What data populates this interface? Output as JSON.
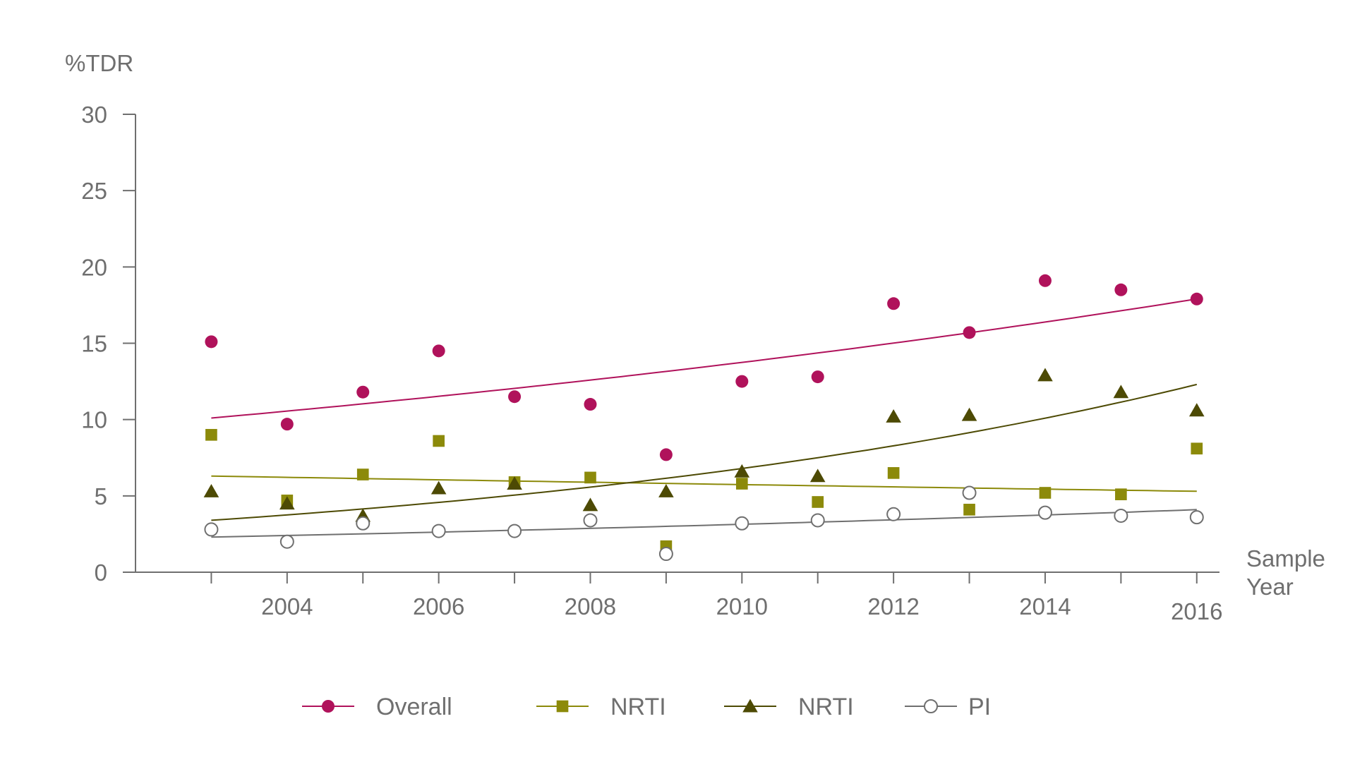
{
  "chart_data": {
    "type": "scatter",
    "ylabel": "%TDR",
    "xlabel_lines": [
      "Sample",
      "Year"
    ],
    "xlim": [
      2002,
      2016.3
    ],
    "ylim": [
      0,
      30
    ],
    "y_ticks": [
      0,
      5,
      10,
      15,
      20,
      25,
      30
    ],
    "x_ticks": [
      2004,
      2006,
      2008,
      2010,
      2012,
      2014,
      2016
    ],
    "x_tick_labels": [
      "2004",
      "2006",
      "2008",
      "2010",
      "2012",
      "2014",
      "2016"
    ],
    "grid": false,
    "legend_position": "bottom",
    "series": [
      {
        "name": "Overall",
        "marker": "circle-filled",
        "color": "#b0125b",
        "x": [
          2003,
          2004,
          2005,
          2006,
          2007,
          2008,
          2009,
          2010,
          2011,
          2012,
          2013,
          2014,
          2015,
          2016
        ],
        "values": [
          15.1,
          9.7,
          11.8,
          14.5,
          11.5,
          11.0,
          7.7,
          12.5,
          12.8,
          17.6,
          15.7,
          19.1,
          18.5,
          17.9
        ],
        "trend": [
          10.1,
          17.9
        ]
      },
      {
        "name": "NRTI",
        "marker": "square-filled",
        "color": "#8c8a0a",
        "x": [
          2003,
          2004,
          2005,
          2006,
          2007,
          2008,
          2009,
          2010,
          2011,
          2012,
          2013,
          2014,
          2015,
          2016
        ],
        "values": [
          9.0,
          4.7,
          6.4,
          8.6,
          5.9,
          6.2,
          1.7,
          5.8,
          4.6,
          6.5,
          4.1,
          5.2,
          5.1,
          8.1
        ],
        "trend": [
          6.3,
          5.3
        ]
      },
      {
        "name": "NRTI",
        "marker": "triangle-filled",
        "color": "#4d4a04",
        "x": [
          2003,
          2004,
          2005,
          2006,
          2007,
          2008,
          2009,
          2010,
          2011,
          2012,
          2013,
          2014,
          2015,
          2016
        ],
        "values": [
          5.3,
          4.5,
          3.7,
          5.5,
          5.8,
          4.4,
          5.3,
          6.6,
          6.3,
          10.2,
          10.3,
          12.9,
          11.8,
          10.6
        ],
        "trend": [
          3.4,
          12.3
        ]
      },
      {
        "name": "PI",
        "marker": "circle-open",
        "color": "#6f6f6f",
        "x": [
          2003,
          2004,
          2005,
          2006,
          2007,
          2008,
          2009,
          2010,
          2011,
          2012,
          2013,
          2014,
          2015,
          2016
        ],
        "values": [
          2.8,
          2.0,
          3.2,
          2.7,
          2.7,
          3.4,
          1.2,
          3.2,
          3.4,
          3.8,
          5.2,
          3.9,
          3.7,
          3.6
        ],
        "trend": [
          2.3,
          4.1
        ]
      }
    ]
  }
}
